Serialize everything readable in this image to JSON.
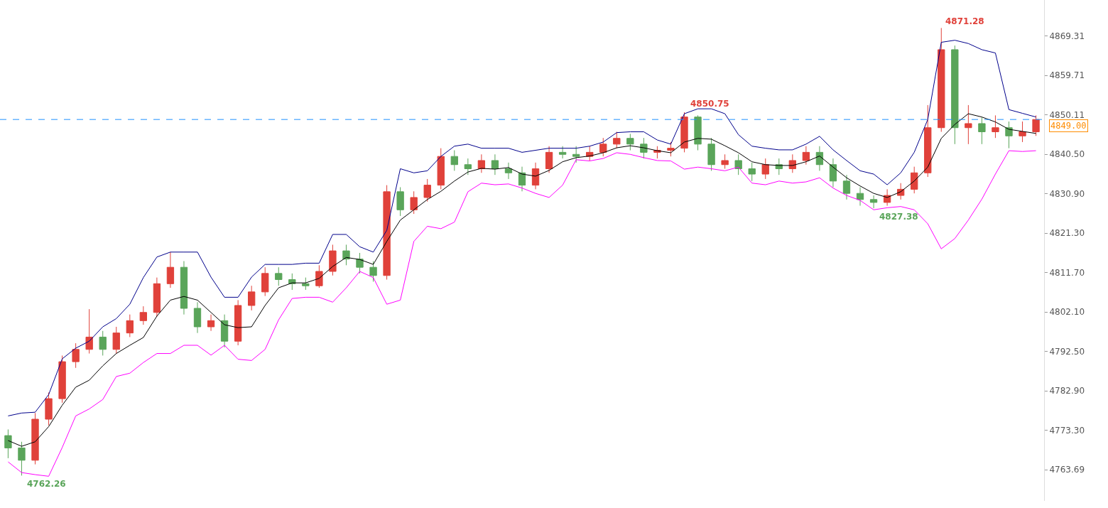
{
  "chart_data": {
    "type": "candlestick",
    "categories": [
      null,
      null,
      null,
      null,
      null,
      null,
      null,
      null,
      null,
      null,
      null,
      null,
      null,
      null,
      null,
      null,
      null,
      null,
      null,
      null,
      null,
      null,
      null,
      null,
      null,
      null,
      null,
      null,
      null,
      null,
      null,
      null,
      null,
      null,
      null,
      null,
      null,
      null,
      null,
      null,
      null,
      null,
      null,
      null,
      null,
      null,
      null,
      null,
      null,
      null,
      null,
      null,
      null,
      null,
      null,
      null,
      null,
      null,
      null,
      null,
      null,
      null,
      null,
      null,
      null,
      null,
      null,
      null,
      null,
      null,
      null,
      null,
      null,
      null,
      null,
      null,
      null
    ],
    "ohlc": [
      [
        4772,
        4773.5,
        4766.5,
        4769
      ],
      [
        4769,
        4770.5,
        4762.26,
        4766
      ],
      [
        4766,
        4777.5,
        4765,
        4776
      ],
      [
        4776,
        4782.5,
        4774.5,
        4781
      ],
      [
        4781,
        4791.5,
        4780,
        4790
      ],
      [
        4790,
        4794.5,
        4788.5,
        4793
      ],
      [
        4793,
        4802.8,
        4792,
        4796
      ],
      [
        4796,
        4797.5,
        4791.5,
        4793
      ],
      [
        4793,
        4798.5,
        4792,
        4797
      ],
      [
        4797,
        4801.5,
        4796,
        4800
      ],
      [
        4800,
        4803.5,
        4799,
        4802
      ],
      [
        4802,
        4810.5,
        4801,
        4809
      ],
      [
        4809,
        4816.7,
        4808,
        4813
      ],
      [
        4813,
        4814.5,
        4801.5,
        4803
      ],
      [
        4803,
        4804.5,
        4797,
        4798.5
      ],
      [
        4798.5,
        4801.5,
        4797.5,
        4800
      ],
      [
        4800,
        4801.5,
        4793.5,
        4795
      ],
      [
        4795,
        4805,
        4794,
        4803.7
      ],
      [
        4803.7,
        4808.5,
        4802.5,
        4807
      ],
      [
        4807,
        4813,
        4806,
        4811.5
      ],
      [
        4811.5,
        4813,
        4808.5,
        4810
      ],
      [
        4810,
        4811.5,
        4807.5,
        4809
      ],
      [
        4809,
        4810.5,
        4807.5,
        4808.5
      ],
      [
        4808.5,
        4813.5,
        4808,
        4812
      ],
      [
        4812,
        4818.5,
        4811,
        4817
      ],
      [
        4817,
        4818.5,
        4813.5,
        4815
      ],
      [
        4815,
        4816.5,
        4811.5,
        4813
      ],
      [
        4813,
        4814.5,
        4809.5,
        4811
      ],
      [
        4811,
        4833,
        4810,
        4831.4
      ],
      [
        4831.4,
        4832.5,
        4825.5,
        4827
      ],
      [
        4827,
        4831.5,
        4826,
        4830
      ],
      [
        4830,
        4834.5,
        4829,
        4833
      ],
      [
        4833,
        4842,
        4832,
        4840
      ],
      [
        4840,
        4841.5,
        4836.5,
        4838
      ],
      [
        4838,
        4839.5,
        4835.5,
        4837
      ],
      [
        4837,
        4840.5,
        4836,
        4839
      ],
      [
        4839,
        4840.5,
        4835.5,
        4837
      ],
      [
        4837,
        4838.5,
        4834.5,
        4836
      ],
      [
        4836,
        4837.5,
        4831.5,
        4833
      ],
      [
        4833,
        4838.5,
        4832,
        4837
      ],
      [
        4837,
        4842.5,
        4836,
        4841
      ],
      [
        4841,
        4842.5,
        4839.5,
        4840.5
      ],
      [
        4840.5,
        4842.5,
        4838.5,
        4840
      ],
      [
        4840,
        4842.5,
        4839,
        4841
      ],
      [
        4841,
        4844.5,
        4840,
        4843
      ],
      [
        4843,
        4846,
        4842,
        4844.4
      ],
      [
        4844.4,
        4845.5,
        4841.5,
        4843
      ],
      [
        4843,
        4844.5,
        4839.5,
        4841
      ],
      [
        4841,
        4842.5,
        4839.5,
        4841.5
      ],
      [
        4841.5,
        4843.5,
        4840,
        4842
      ],
      [
        4842,
        4850.75,
        4841,
        4849.6
      ],
      [
        4849.6,
        4850,
        4841.5,
        4843
      ],
      [
        4843,
        4844.5,
        4836.5,
        4838
      ],
      [
        4838,
        4840.5,
        4837,
        4839
      ],
      [
        4839,
        4840.5,
        4835.5,
        4837
      ],
      [
        4837,
        4838.5,
        4834,
        4835.7
      ],
      [
        4835.7,
        4839.5,
        4834.5,
        4838
      ],
      [
        4838,
        4839.5,
        4835.5,
        4837
      ],
      [
        4837,
        4840.5,
        4836,
        4839
      ],
      [
        4839,
        4842.5,
        4838,
        4841
      ],
      [
        4841,
        4842.5,
        4836.5,
        4838
      ],
      [
        4838,
        4839.5,
        4832.5,
        4834
      ],
      [
        4834,
        4835.5,
        4829.5,
        4831
      ],
      [
        4831,
        4832.5,
        4828,
        4829.5
      ],
      [
        4829.5,
        4830.5,
        4827.38,
        4828.8
      ],
      [
        4828.8,
        4832,
        4828,
        4830.5
      ],
      [
        4830.5,
        4833.5,
        4829.5,
        4832
      ],
      [
        4832,
        4837.5,
        4831,
        4836
      ],
      [
        4836,
        4852.5,
        4835,
        4847
      ],
      [
        4847,
        4871.28,
        4846,
        4866
      ],
      [
        4866,
        4867,
        4843,
        4847
      ],
      [
        4847,
        4852.5,
        4843,
        4848
      ],
      [
        4848,
        4849.5,
        4843,
        4846
      ],
      [
        4846,
        4850,
        4844.5,
        4847
      ],
      [
        4847,
        4848.5,
        4842,
        4845
      ],
      [
        4845,
        4848.5,
        4843.5,
        4846
      ],
      [
        4846,
        4850,
        4845,
        4849
      ]
    ],
    "colors": [
      "#5aa55a",
      "#5aa55a",
      "#e0413a",
      "#e0413a",
      "#e0413a",
      "#e0413a",
      "#e0413a",
      "#5aa55a",
      "#e0413a",
      "#e0413a",
      "#e0413a",
      "#e0413a",
      "#e0413a",
      "#5aa55a",
      "#5aa55a",
      "#e0413a",
      "#5aa55a",
      "#e0413a",
      "#e0413a",
      "#e0413a",
      "#5aa55a",
      "#5aa55a",
      "#5aa55a",
      "#e0413a",
      "#e0413a",
      "#5aa55a",
      "#5aa55a",
      "#5aa55a",
      "#e0413a",
      "#5aa55a",
      "#e0413a",
      "#e0413a",
      "#e0413a",
      "#5aa55a",
      "#5aa55a",
      "#e0413a",
      "#5aa55a",
      "#5aa55a",
      "#5aa55a",
      "#e0413a",
      "#e0413a",
      "#5aa55a",
      "#5aa55a",
      "#e0413a",
      "#e0413a",
      "#e0413a",
      "#5aa55a",
      "#5aa55a",
      "#e0413a",
      "#e0413a",
      "#e0413a",
      "#5aa55a",
      "#5aa55a",
      "#e0413a",
      "#5aa55a",
      "#5aa55a",
      "#e0413a",
      "#5aa55a",
      "#e0413a",
      "#e0413a",
      "#5aa55a",
      "#5aa55a",
      "#5aa55a",
      "#5aa55a",
      "#5aa55a",
      "#e0413a",
      "#e0413a",
      "#e0413a",
      "#e0413a",
      "#e0413a",
      "#5aa55a",
      "#e0413a",
      "#5aa55a",
      "#e0413a",
      "#5aa55a",
      "#e0413a",
      "#e0413a"
    ],
    "series": [
      {
        "type": "line",
        "color": "#00008b",
        "values": [
          4776.8,
          4777.5,
          4777.7,
          4782,
          4790.7,
          4793.3,
          4795,
          4798.5,
          4800.5,
          4804,
          4810.5,
          4815.5,
          4816.7,
          4816.7,
          4816.7,
          4810.6,
          4805.7,
          4805.7,
          4810.6,
          4813.7,
          4813.7,
          4813.7,
          4814,
          4814,
          4821,
          4821,
          4818,
          4816.7,
          4822,
          4837,
          4836,
          4836.5,
          4840,
          4842.5,
          4843,
          4842,
          4842,
          4842,
          4841,
          4841.5,
          4842,
          4842,
          4842,
          4842.5,
          4843.5,
          4845.8,
          4846,
          4846,
          4844,
          4843,
          4850.4,
          4851.6,
          4851.6,
          4850.4,
          4845.3,
          4842.5,
          4842,
          4841.6,
          4841.6,
          4843,
          4844.9,
          4841.6,
          4839,
          4836.5,
          4835.7,
          4833.1,
          4836,
          4841,
          4849,
          4867.8,
          4868.3,
          4867.5,
          4866,
          4865.2,
          4851.4,
          4850.5,
          4849.6
        ]
      },
      {
        "type": "line",
        "color": "#000000",
        "values": [
          4770.8,
          4769.4,
          4770.5,
          4774.2,
          4779.4,
          4783.8,
          4785.5,
          4789,
          4792,
          4794,
          4795.9,
          4801.1,
          4805,
          4805.9,
          4805,
          4802,
          4799,
          4798.3,
          4798.5,
          4803.7,
          4808,
          4809.2,
          4809.2,
          4810.3,
          4813.2,
          4815.4,
          4814.9,
          4813.7,
          4819.3,
          4824.5,
          4827,
          4829.5,
          4831.5,
          4834,
          4836.2,
          4837.1,
          4836.9,
          4837.3,
          4835.7,
          4835.2,
          4836.6,
          4838.7,
          4839.7,
          4840.1,
          4840.9,
          4842.1,
          4842.6,
          4842.1,
          4841.4,
          4840.9,
          4843.5,
          4844.4,
          4844.2,
          4842.6,
          4840.9,
          4838.7,
          4838,
          4837.8,
          4837.8,
          4838.7,
          4840.1,
          4837.4,
          4834.8,
          4832.8,
          4831,
          4830,
          4831.4,
          4834,
          4837.4,
          4844.4,
          4847.8,
          4850.4,
          4849.6,
          4848.4,
          4846.6,
          4846.1,
          4845.6
        ]
      },
      {
        "type": "line",
        "color": "#ff00ff",
        "values": [
          4765.6,
          4763,
          4762.5,
          4762.1,
          4769.1,
          4776.8,
          4778.5,
          4780.8,
          4786.4,
          4787.2,
          4789.8,
          4792,
          4792,
          4794,
          4794,
          4791.6,
          4794,
          4790.6,
          4790.3,
          4793,
          4800.2,
          4805.4,
          4805.7,
          4805.7,
          4804.5,
          4808,
          4812,
          4810.5,
          4804,
          4805,
          4819.3,
          4823,
          4822.4,
          4824,
          4831.4,
          4833.5,
          4833.1,
          4833.3,
          4832.3,
          4831,
          4830,
          4833,
          4839.2,
          4838.9,
          4839.5,
          4840.9,
          4840.5,
          4839.7,
          4839,
          4838.9,
          4836.9,
          4837.4,
          4837,
          4836.5,
          4837.4,
          4833.5,
          4833.1,
          4834,
          4833.5,
          4833.8,
          4834.8,
          4832.3,
          4830.5,
          4829.3,
          4827,
          4827.5,
          4827.8,
          4827,
          4823.6,
          4817.5,
          4820,
          4824.5,
          4829.6,
          4835.7,
          4841.4,
          4841.2,
          4841.4
        ]
      }
    ],
    "ylim": [
      4756.1,
      4878.1
    ],
    "yticks": [
      4763.69,
      {
        "value": 4773.3,
        "label": "4773.30"
      },
      {
        "value": 4782.9,
        "label": "4782.90"
      },
      {
        "value": 4792.5,
        "label": "4792.50"
      },
      {
        "value": 4802.1,
        "label": "4802.10"
      },
      {
        "value": 4811.7,
        "label": "4811.70"
      },
      {
        "value": 4821.3,
        "label": "4821.30"
      },
      {
        "value": 4830.9,
        "label": "4830.90"
      },
      {
        "value": 4840.5,
        "label": "4840.50"
      },
      4850.11,
      4859.71,
      4869.31
    ],
    "ref_lines": [
      {
        "axis": "y",
        "value": 4849.0,
        "label": "4849.00",
        "color": "#1e90ff",
        "line_style": "dashed"
      }
    ],
    "annotations": [
      "4871.28",
      {
        "text": "4850.75",
        "y": 4850.75
      },
      {
        "text": "4827.38",
        "y": 4827.38
      },
      {
        "text": "4762.26",
        "y": 4762.26
      }
    ],
    "tick_labels": "y"
  }
}
